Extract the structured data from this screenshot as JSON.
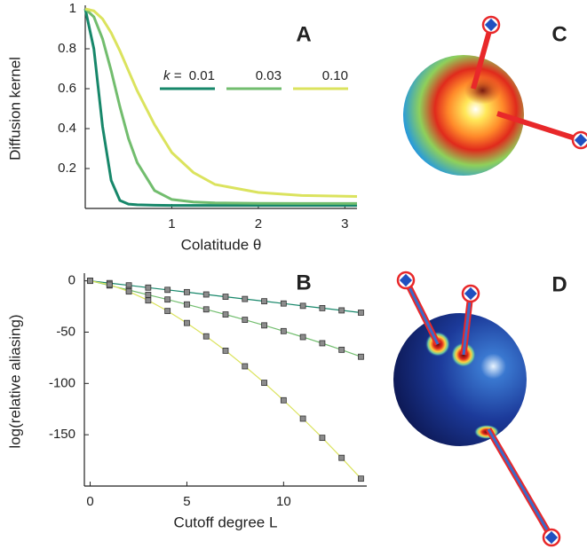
{
  "chart_data": [
    {
      "type": "line",
      "panel": "A",
      "x_label": "Colatitude θ",
      "y_label": "Diffusion kernel",
      "legend_title": "k =",
      "x": [
        0,
        0.1,
        0.2,
        0.3,
        0.4,
        0.5,
        0.6,
        0.8,
        1.0,
        1.25,
        1.5,
        2,
        2.5,
        3.14
      ],
      "series": [
        {
          "name": "0.01",
          "color": "#17876a",
          "values": [
            1,
            0.8,
            0.41,
            0.14,
            0.04,
            0.022,
            0.018,
            0.016,
            0.015,
            0.015,
            0.015,
            0.015,
            0.015,
            0.015
          ]
        },
        {
          "name": "0.03",
          "color": "#72bd6e",
          "values": [
            1,
            0.96,
            0.85,
            0.69,
            0.51,
            0.35,
            0.23,
            0.09,
            0.045,
            0.032,
            0.028,
            0.026,
            0.025,
            0.025
          ]
        },
        {
          "name": "0.10",
          "color": "#dbe35e",
          "values": [
            1,
            0.99,
            0.95,
            0.88,
            0.79,
            0.69,
            0.59,
            0.42,
            0.28,
            0.18,
            0.12,
            0.08,
            0.065,
            0.06
          ]
        }
      ],
      "xlim": [
        0,
        3.14
      ],
      "xticks": [
        1,
        2,
        3
      ],
      "ylim": [
        0,
        1
      ],
      "yticks": [
        0.2,
        0.4,
        0.6,
        0.8,
        1
      ],
      "legend": "upper right",
      "markers": false
    },
    {
      "type": "line",
      "panel": "B",
      "x_label": "Cutoff degree L",
      "y_label": "log(relative aliasing)",
      "x": [
        0,
        1,
        2,
        3,
        4,
        5,
        6,
        7,
        8,
        9,
        10,
        11,
        12,
        13,
        14
      ],
      "series": [
        {
          "color": "#17876a",
          "values": [
            0,
            -2.2,
            -4.4,
            -6.6,
            -8.8,
            -11,
            -13.3,
            -15.5,
            -17.7,
            -19.9,
            -22.1,
            -24.4,
            -26.6,
            -28.8,
            -31
          ]
        },
        {
          "color": "#72bd6e",
          "values": [
            0,
            -4.5,
            -9,
            -13.6,
            -18.2,
            -23,
            -27.8,
            -32.8,
            -38,
            -43.4,
            -49,
            -54.8,
            -60.8,
            -67.2,
            -74
          ]
        },
        {
          "color": "#dbe35e",
          "values": [
            0,
            -3.7,
            -10.4,
            -19.1,
            -29.4,
            -41.1,
            -54.1,
            -68.1,
            -83.3,
            -99.4,
            -116.4,
            -134.3,
            -153,
            -172.5,
            -192.8
          ]
        }
      ],
      "xlim": [
        -0.3,
        14.3
      ],
      "xticks": [
        0,
        5,
        10
      ],
      "ylim": [
        -200,
        4
      ],
      "yticks": [
        0,
        -50,
        -100,
        -150
      ],
      "markers": true,
      "marker_color": "#8c8c8c"
    }
  ],
  "illustrations": [
    {
      "panel": "C"
    },
    {
      "panel": "D"
    }
  ]
}
